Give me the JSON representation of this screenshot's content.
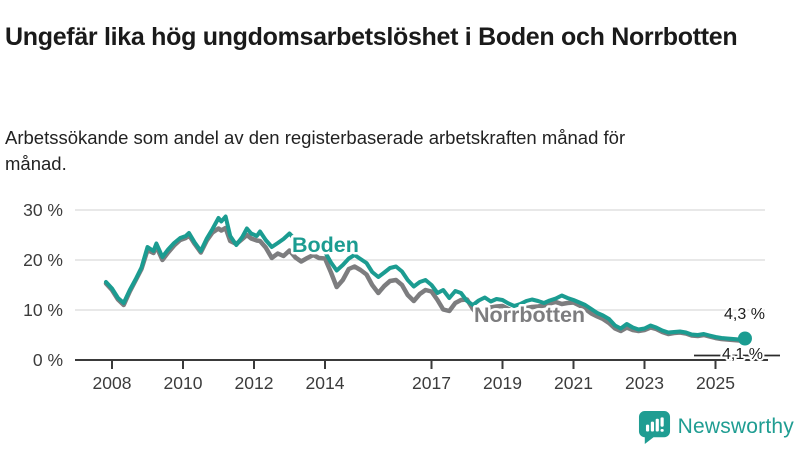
{
  "header": {
    "title": "Ungefär lika hög ungdomsarbetslöshet i Boden och Norrbotten",
    "subtitle": "Arbetssökande som andel av den registerbaserade arbetskraften månad för månad."
  },
  "chart_data": {
    "type": "line",
    "title": "Ungefär lika hög ungdomsarbetslöshet i Boden och Norrbotten",
    "subtitle": "Arbetssökande som andel av den registerbaserade arbetskraften månad för månad.",
    "unit": "%",
    "grid": "horizontal",
    "legend_position": "inline-labels",
    "xlim": [
      2007.7,
      2026.4
    ],
    "ylim": [
      0,
      32
    ],
    "x_ticks": [
      {
        "value": 2008,
        "label": "2008"
      },
      {
        "value": 2010,
        "label": "2010"
      },
      {
        "value": 2012,
        "label": "2012"
      },
      {
        "value": 2014,
        "label": "2014"
      },
      {
        "value": 2017,
        "label": "2017"
      },
      {
        "value": 2019,
        "label": "2019"
      },
      {
        "value": 2021,
        "label": "2021"
      },
      {
        "value": 2023,
        "label": "2023"
      },
      {
        "value": 2025,
        "label": "2025"
      }
    ],
    "y_ticks": [
      {
        "value": 30,
        "label": "30 %"
      },
      {
        "value": 20,
        "label": "20 %"
      },
      {
        "value": 10,
        "label": "10 %"
      },
      {
        "value": 0,
        "label": "0 %"
      }
    ],
    "series": [
      {
        "name": "Boden",
        "color": "#1b9c91",
        "end_label": "4,3 %",
        "end_value": 4.3,
        "end_marker": true,
        "points": [
          [
            2007.83,
            15.6
          ],
          [
            2008.0,
            14.3
          ],
          [
            2008.17,
            12.4
          ],
          [
            2008.33,
            11.4
          ],
          [
            2008.5,
            14.0
          ],
          [
            2008.67,
            16.2
          ],
          [
            2008.83,
            18.5
          ],
          [
            2009.0,
            22.6
          ],
          [
            2009.17,
            21.8
          ],
          [
            2009.25,
            23.3
          ],
          [
            2009.42,
            20.6
          ],
          [
            2009.58,
            22.1
          ],
          [
            2009.75,
            23.4
          ],
          [
            2009.92,
            24.4
          ],
          [
            2010.08,
            24.8
          ],
          [
            2010.17,
            25.4
          ],
          [
            2010.33,
            23.5
          ],
          [
            2010.5,
            21.8
          ],
          [
            2010.67,
            24.3
          ],
          [
            2010.83,
            26.2
          ],
          [
            2011.0,
            28.4
          ],
          [
            2011.08,
            27.7
          ],
          [
            2011.2,
            28.7
          ],
          [
            2011.33,
            24.8
          ],
          [
            2011.5,
            23.0
          ],
          [
            2011.67,
            24.6
          ],
          [
            2011.8,
            26.3
          ],
          [
            2011.92,
            25.3
          ],
          [
            2012.08,
            24.8
          ],
          [
            2012.17,
            25.7
          ],
          [
            2012.33,
            24.0
          ],
          [
            2012.5,
            22.6
          ],
          [
            2012.67,
            23.4
          ],
          [
            2012.83,
            24.2
          ],
          [
            2013.0,
            25.3
          ],
          [
            2013.17,
            24.0
          ],
          [
            2013.33,
            22.4
          ],
          [
            2013.5,
            22.7
          ],
          [
            2013.67,
            23.3
          ],
          [
            2013.83,
            23.6
          ],
          [
            2014.0,
            21.6
          ],
          [
            2014.17,
            19.5
          ],
          [
            2014.33,
            17.9
          ],
          [
            2014.5,
            19.0
          ],
          [
            2014.67,
            20.3
          ],
          [
            2014.83,
            21.0
          ],
          [
            2015.0,
            20.2
          ],
          [
            2015.17,
            19.4
          ],
          [
            2015.33,
            17.6
          ],
          [
            2015.5,
            16.6
          ],
          [
            2015.67,
            17.5
          ],
          [
            2015.83,
            18.4
          ],
          [
            2016.0,
            18.7
          ],
          [
            2016.17,
            17.7
          ],
          [
            2016.33,
            16.0
          ],
          [
            2016.5,
            14.7
          ],
          [
            2016.67,
            15.6
          ],
          [
            2016.83,
            16.0
          ],
          [
            2017.0,
            15.0
          ],
          [
            2017.17,
            13.4
          ],
          [
            2017.33,
            14.0
          ],
          [
            2017.5,
            12.4
          ],
          [
            2017.67,
            13.8
          ],
          [
            2017.83,
            13.4
          ],
          [
            2018.0,
            11.8
          ],
          [
            2018.17,
            11.0
          ],
          [
            2018.33,
            11.9
          ],
          [
            2018.5,
            12.5
          ],
          [
            2018.67,
            11.7
          ],
          [
            2018.83,
            12.2
          ],
          [
            2019.0,
            12.0
          ],
          [
            2019.17,
            11.3
          ],
          [
            2019.33,
            10.8
          ],
          [
            2019.5,
            11.2
          ],
          [
            2019.67,
            11.8
          ],
          [
            2019.83,
            12.1
          ],
          [
            2020.0,
            11.8
          ],
          [
            2020.17,
            11.4
          ],
          [
            2020.33,
            11.9
          ],
          [
            2020.5,
            12.3
          ],
          [
            2020.67,
            12.9
          ],
          [
            2020.83,
            12.4
          ],
          [
            2021.0,
            12.0
          ],
          [
            2021.17,
            11.5
          ],
          [
            2021.33,
            11.0
          ],
          [
            2021.5,
            10.2
          ],
          [
            2021.67,
            9.4
          ],
          [
            2021.83,
            8.9
          ],
          [
            2022.0,
            8.2
          ],
          [
            2022.17,
            6.9
          ],
          [
            2022.33,
            6.3
          ],
          [
            2022.5,
            7.2
          ],
          [
            2022.67,
            6.5
          ],
          [
            2022.83,
            6.1
          ],
          [
            2023.0,
            6.3
          ],
          [
            2023.17,
            6.9
          ],
          [
            2023.33,
            6.5
          ],
          [
            2023.5,
            5.9
          ],
          [
            2023.67,
            5.5
          ],
          [
            2023.83,
            5.6
          ],
          [
            2024.0,
            5.7
          ],
          [
            2024.17,
            5.5
          ],
          [
            2024.33,
            5.1
          ],
          [
            2024.5,
            5.0
          ],
          [
            2024.67,
            5.2
          ],
          [
            2024.83,
            4.9
          ],
          [
            2025.0,
            4.6
          ],
          [
            2025.17,
            4.4
          ],
          [
            2025.33,
            4.3
          ],
          [
            2025.5,
            4.2
          ],
          [
            2025.67,
            4.1
          ],
          [
            2025.83,
            4.3
          ]
        ]
      },
      {
        "name": "Norrbotten",
        "color": "#7d7d7f",
        "end_label": "4,1 %",
        "end_value": 4.1,
        "end_marker": false,
        "points": [
          [
            2007.83,
            15.3
          ],
          [
            2008.0,
            14.0
          ],
          [
            2008.17,
            12.1
          ],
          [
            2008.33,
            11.0
          ],
          [
            2008.5,
            13.7
          ],
          [
            2008.67,
            16.0
          ],
          [
            2008.83,
            18.2
          ],
          [
            2009.0,
            22.0
          ],
          [
            2009.17,
            21.4
          ],
          [
            2009.25,
            22.7
          ],
          [
            2009.42,
            20.0
          ],
          [
            2009.58,
            21.5
          ],
          [
            2009.75,
            22.9
          ],
          [
            2009.92,
            24.0
          ],
          [
            2010.08,
            24.4
          ],
          [
            2010.17,
            25.0
          ],
          [
            2010.33,
            23.2
          ],
          [
            2010.5,
            21.5
          ],
          [
            2010.67,
            23.9
          ],
          [
            2010.83,
            25.5
          ],
          [
            2011.0,
            26.3
          ],
          [
            2011.08,
            25.9
          ],
          [
            2011.2,
            26.4
          ],
          [
            2011.33,
            23.8
          ],
          [
            2011.5,
            23.2
          ],
          [
            2011.67,
            24.2
          ],
          [
            2011.8,
            25.0
          ],
          [
            2011.92,
            24.3
          ],
          [
            2012.08,
            23.9
          ],
          [
            2012.17,
            23.8
          ],
          [
            2012.33,
            22.5
          ],
          [
            2012.5,
            20.4
          ],
          [
            2012.67,
            21.3
          ],
          [
            2012.83,
            20.8
          ],
          [
            2013.0,
            21.9
          ],
          [
            2013.17,
            20.5
          ],
          [
            2013.33,
            19.7
          ],
          [
            2013.5,
            20.4
          ],
          [
            2013.67,
            21.0
          ],
          [
            2013.83,
            20.4
          ],
          [
            2014.0,
            20.3
          ],
          [
            2014.17,
            17.5
          ],
          [
            2014.33,
            14.6
          ],
          [
            2014.5,
            16.0
          ],
          [
            2014.67,
            18.2
          ],
          [
            2014.83,
            18.7
          ],
          [
            2015.0,
            18.0
          ],
          [
            2015.17,
            17.1
          ],
          [
            2015.33,
            15.0
          ],
          [
            2015.5,
            13.4
          ],
          [
            2015.67,
            14.8
          ],
          [
            2015.83,
            15.8
          ],
          [
            2016.0,
            16.0
          ],
          [
            2016.17,
            15.0
          ],
          [
            2016.33,
            13.0
          ],
          [
            2016.5,
            11.8
          ],
          [
            2016.67,
            13.2
          ],
          [
            2016.83,
            14.0
          ],
          [
            2017.0,
            13.7
          ],
          [
            2017.17,
            12.0
          ],
          [
            2017.33,
            10.1
          ],
          [
            2017.5,
            9.8
          ],
          [
            2017.67,
            11.4
          ],
          [
            2017.83,
            12.0
          ],
          [
            2018.0,
            12.1
          ],
          [
            2018.17,
            10.2
          ],
          [
            2018.33,
            8.8
          ],
          [
            2018.5,
            9.6
          ],
          [
            2018.67,
            10.5
          ],
          [
            2018.83,
            10.7
          ],
          [
            2019.0,
            10.8
          ],
          [
            2019.17,
            10.2
          ],
          [
            2019.33,
            9.6
          ],
          [
            2019.5,
            9.9
          ],
          [
            2019.67,
            10.4
          ],
          [
            2019.83,
            10.6
          ],
          [
            2020.0,
            10.7
          ],
          [
            2020.17,
            10.9
          ],
          [
            2020.33,
            11.3
          ],
          [
            2020.5,
            11.6
          ],
          [
            2020.67,
            11.2
          ],
          [
            2020.83,
            11.4
          ],
          [
            2021.0,
            11.5
          ],
          [
            2021.17,
            10.9
          ],
          [
            2021.33,
            10.2
          ],
          [
            2021.5,
            9.3
          ],
          [
            2021.67,
            8.7
          ],
          [
            2021.83,
            8.2
          ],
          [
            2022.0,
            7.4
          ],
          [
            2022.17,
            6.3
          ],
          [
            2022.33,
            5.8
          ],
          [
            2022.5,
            6.5
          ],
          [
            2022.67,
            6.0
          ],
          [
            2022.83,
            5.8
          ],
          [
            2023.0,
            6.0
          ],
          [
            2023.17,
            6.5
          ],
          [
            2023.33,
            6.2
          ],
          [
            2023.5,
            5.6
          ],
          [
            2023.67,
            5.2
          ],
          [
            2023.83,
            5.4
          ],
          [
            2024.0,
            5.5
          ],
          [
            2024.17,
            5.3
          ],
          [
            2024.33,
            4.9
          ],
          [
            2024.5,
            4.8
          ],
          [
            2024.67,
            5.0
          ],
          [
            2024.83,
            4.7
          ],
          [
            2025.0,
            4.4
          ],
          [
            2025.17,
            4.2
          ],
          [
            2025.33,
            4.1
          ],
          [
            2025.5,
            4.0
          ],
          [
            2025.67,
            3.9
          ],
          [
            2025.83,
            4.1
          ]
        ]
      }
    ]
  },
  "footer": {
    "brand": "Newsworthy",
    "logo_icon": "bar-chart-speech-bubble-icon",
    "brand_color": "#1f9d92"
  }
}
